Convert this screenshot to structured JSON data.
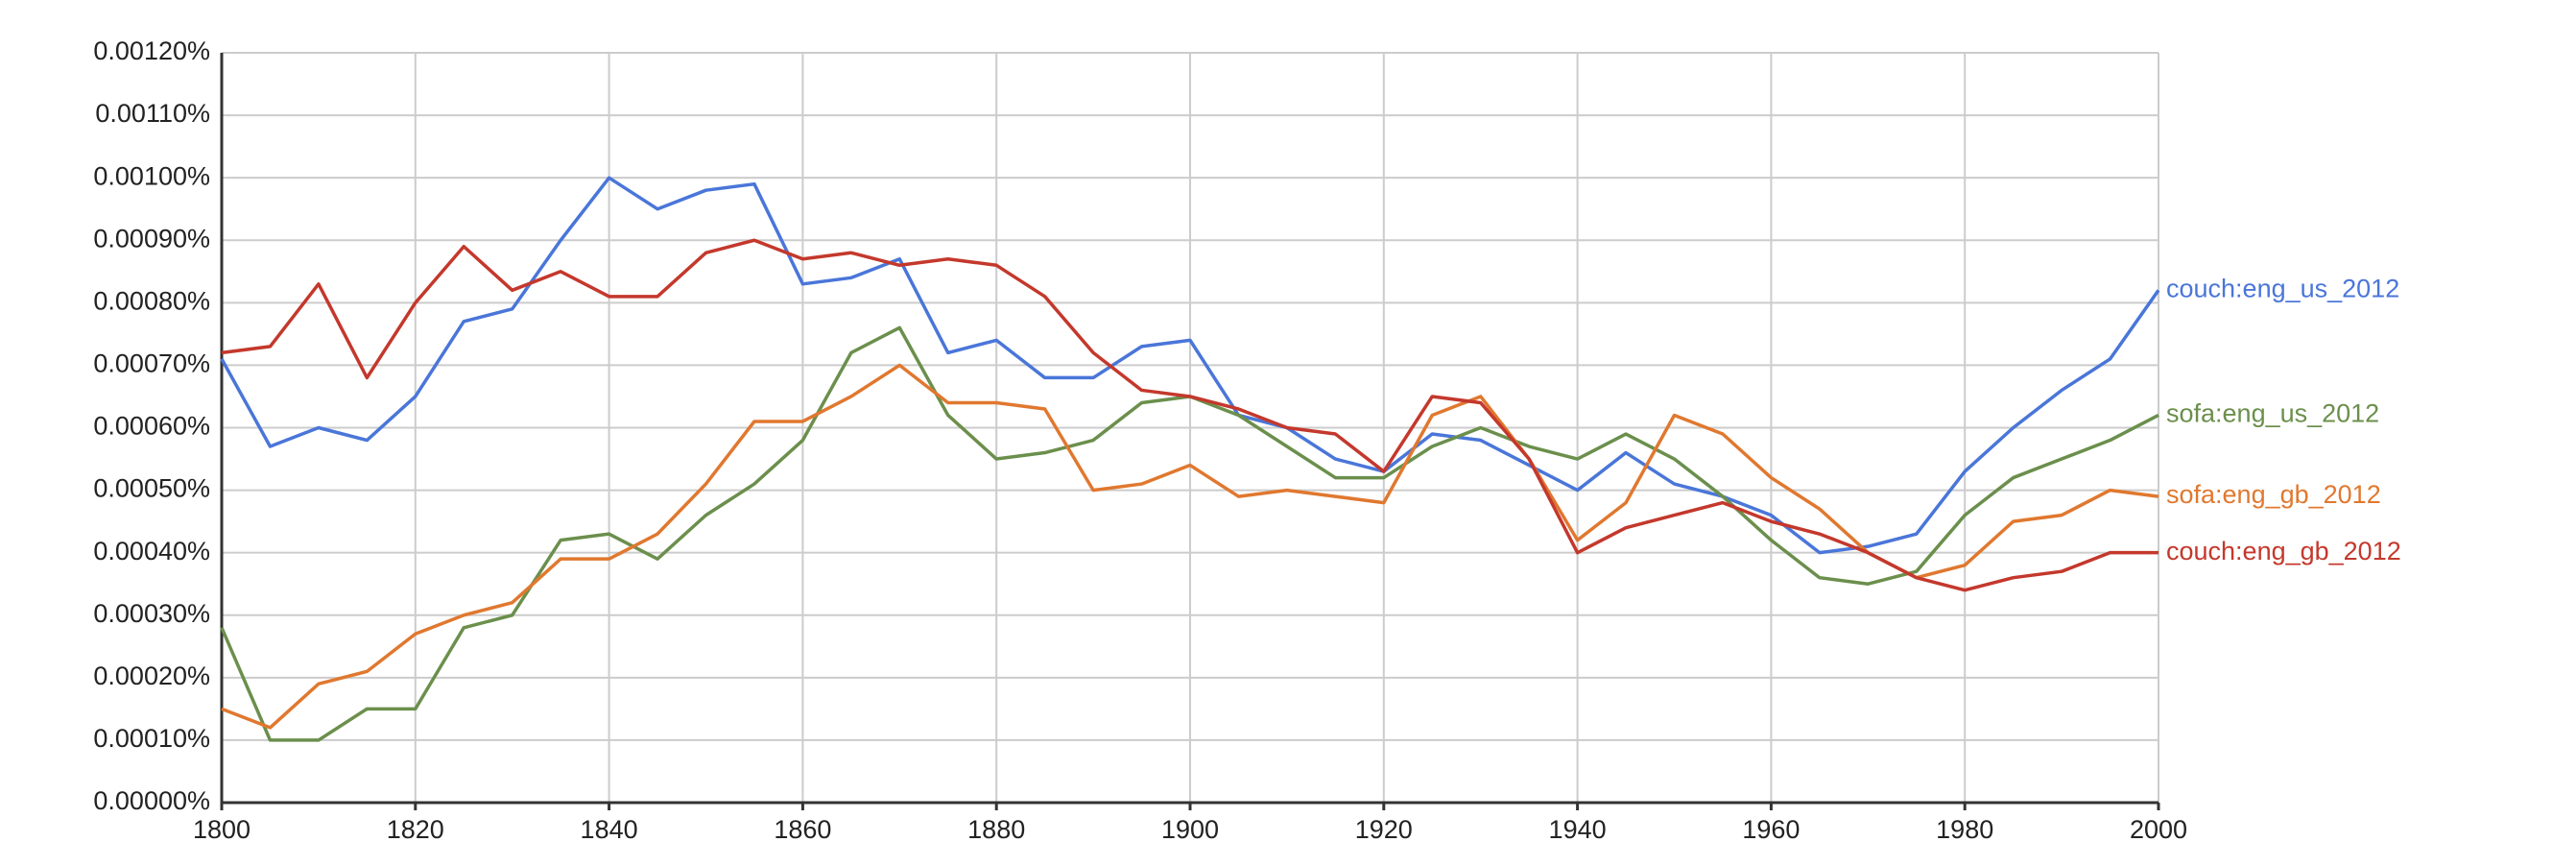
{
  "chart_data": {
    "type": "line",
    "x": [
      1800,
      1805,
      1810,
      1815,
      1820,
      1825,
      1830,
      1835,
      1840,
      1845,
      1850,
      1855,
      1860,
      1865,
      1870,
      1875,
      1880,
      1885,
      1890,
      1895,
      1900,
      1905,
      1910,
      1915,
      1920,
      1925,
      1930,
      1935,
      1940,
      1945,
      1950,
      1955,
      1960,
      1965,
      1970,
      1975,
      1980,
      1985,
      1990,
      1995,
      2000
    ],
    "xlim": [
      1800,
      2000
    ],
    "xticks": [
      1800,
      1820,
      1840,
      1860,
      1880,
      1900,
      1920,
      1940,
      1960,
      1980,
      2000
    ],
    "ylim": [
      0,
      0.0012
    ],
    "yticks": [
      {
        "value": 0,
        "label": "0.00000%"
      },
      {
        "value": 0.0001,
        "label": "0.00010%"
      },
      {
        "value": 0.0002,
        "label": "0.00020%"
      },
      {
        "value": 0.0003,
        "label": "0.00030%"
      },
      {
        "value": 0.0004,
        "label": "0.00040%"
      },
      {
        "value": 0.0005,
        "label": "0.00050%"
      },
      {
        "value": 0.0006,
        "label": "0.00060%"
      },
      {
        "value": 0.0007,
        "label": "0.00070%"
      },
      {
        "value": 0.0008,
        "label": "0.00080%"
      },
      {
        "value": 0.0009,
        "label": "0.00090%"
      },
      {
        "value": 0.001,
        "label": "0.00100%"
      },
      {
        "value": 0.0011,
        "label": "0.00110%"
      },
      {
        "value": 0.0012,
        "label": "0.00120%"
      }
    ],
    "grid": true,
    "series": [
      {
        "name": "couch:eng_us_2012",
        "color": "#4a76d9",
        "values": [
          0.00071,
          0.00057,
          0.0006,
          0.00058,
          0.00065,
          0.00077,
          0.00079,
          0.0009,
          0.001,
          0.00095,
          0.00098,
          0.00099,
          0.00083,
          0.00084,
          0.00087,
          0.00072,
          0.00074,
          0.00068,
          0.00068,
          0.00073,
          0.00074,
          0.00062,
          0.0006,
          0.00055,
          0.00053,
          0.00059,
          0.00058,
          0.00054,
          0.0005,
          0.00056,
          0.00051,
          0.00049,
          0.00046,
          0.0004,
          0.00041,
          0.00043,
          0.00053,
          0.0006,
          0.00066,
          0.00071,
          0.00082
        ]
      },
      {
        "name": "sofa:eng_us_2012",
        "color": "#6b8f4c",
        "values": [
          0.00028,
          0.0001,
          0.0001,
          0.00015,
          0.00015,
          0.00028,
          0.0003,
          0.00042,
          0.00043,
          0.00039,
          0.00046,
          0.00051,
          0.00058,
          0.00072,
          0.00076,
          0.00062,
          0.00055,
          0.00056,
          0.00058,
          0.00064,
          0.00065,
          0.00062,
          0.00057,
          0.00052,
          0.00052,
          0.00057,
          0.0006,
          0.00057,
          0.00055,
          0.00059,
          0.00055,
          0.00049,
          0.00042,
          0.00036,
          0.00035,
          0.00037,
          0.00046,
          0.00052,
          0.00055,
          0.00058,
          0.00062
        ]
      },
      {
        "name": "sofa:eng_gb_2012",
        "color": "#e0782f",
        "values": [
          0.00015,
          0.00012,
          0.00019,
          0.00021,
          0.00027,
          0.0003,
          0.00032,
          0.00039,
          0.00039,
          0.00043,
          0.00051,
          0.00061,
          0.00061,
          0.00065,
          0.0007,
          0.00064,
          0.00064,
          0.00063,
          0.0005,
          0.00051,
          0.00054,
          0.00049,
          0.0005,
          0.00049,
          0.00048,
          0.00062,
          0.00065,
          0.00055,
          0.00042,
          0.00048,
          0.00062,
          0.00059,
          0.00052,
          0.00047,
          0.0004,
          0.00036,
          0.00038,
          0.00045,
          0.00046,
          0.0005,
          0.00049
        ]
      },
      {
        "name": "couch:eng_gb_2012",
        "color": "#c4382c",
        "values": [
          0.00072,
          0.00073,
          0.00083,
          0.00068,
          0.0008,
          0.00089,
          0.00082,
          0.00085,
          0.00081,
          0.00081,
          0.00088,
          0.0009,
          0.00087,
          0.00088,
          0.00086,
          0.00087,
          0.00086,
          0.00081,
          0.00072,
          0.00066,
          0.00065,
          0.00063,
          0.0006,
          0.00059,
          0.00053,
          0.00065,
          0.00064,
          0.00055,
          0.0004,
          0.00044,
          0.00046,
          0.00048,
          0.00045,
          0.00043,
          0.0004,
          0.00036,
          0.00034,
          0.00036,
          0.00037,
          0.0004,
          0.0004
        ]
      }
    ]
  }
}
